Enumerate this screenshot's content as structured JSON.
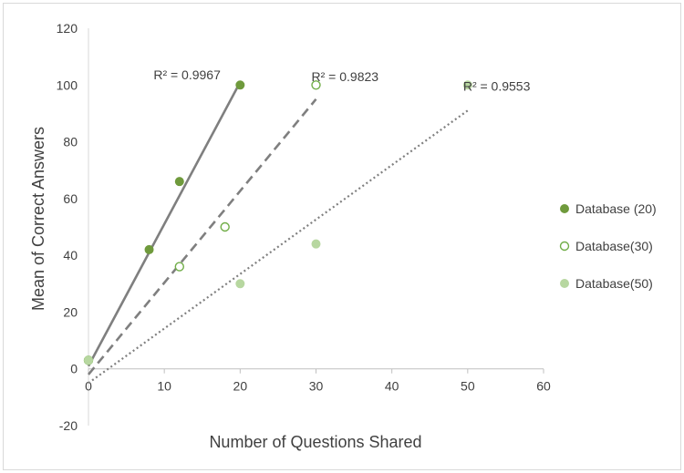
{
  "chart_data": {
    "type": "scatter",
    "title": "",
    "xlabel": "Number of Questions Shared",
    "ylabel": "Mean of Correct Answers",
    "xlim": [
      0,
      60
    ],
    "ylim": [
      -20,
      120
    ],
    "xticks": [
      0,
      10,
      20,
      30,
      40,
      50,
      60
    ],
    "yticks": [
      -20,
      0,
      20,
      40,
      60,
      80,
      100,
      120
    ],
    "grid": false,
    "legend_position": "right",
    "series": [
      {
        "name": "Database (20)",
        "marker": "filled-circle",
        "color": "#6f9a3c",
        "line_style": "solid",
        "line_color": "#7f7f7f",
        "x": [
          0,
          8,
          12,
          20
        ],
        "y": [
          3,
          42,
          66,
          100
        ],
        "trend": {
          "x": [
            0,
            20
          ],
          "y": [
            1,
            101
          ]
        },
        "r2_label": "R² = 0.9967"
      },
      {
        "name": "Database(30)",
        "marker": "hollow-circle",
        "color": "#70ad47",
        "line_style": "dashed",
        "line_color": "#7f7f7f",
        "x": [
          0,
          12,
          18,
          30
        ],
        "y": [
          3,
          36,
          50,
          100
        ],
        "trend": {
          "x": [
            0,
            30
          ],
          "y": [
            -2,
            95
          ]
        },
        "r2_label": "R² = 0.9823"
      },
      {
        "name": "Database(50)",
        "marker": "filled-circle",
        "color": "#b7d7a0",
        "line_style": "dotted",
        "line_color": "#7f7f7f",
        "x": [
          0,
          20,
          30,
          50
        ],
        "y": [
          3,
          30,
          44,
          100
        ],
        "trend": {
          "x": [
            0,
            50
          ],
          "y": [
            -5,
            91
          ]
        },
        "r2_label": "R² = 0.9553"
      }
    ]
  }
}
